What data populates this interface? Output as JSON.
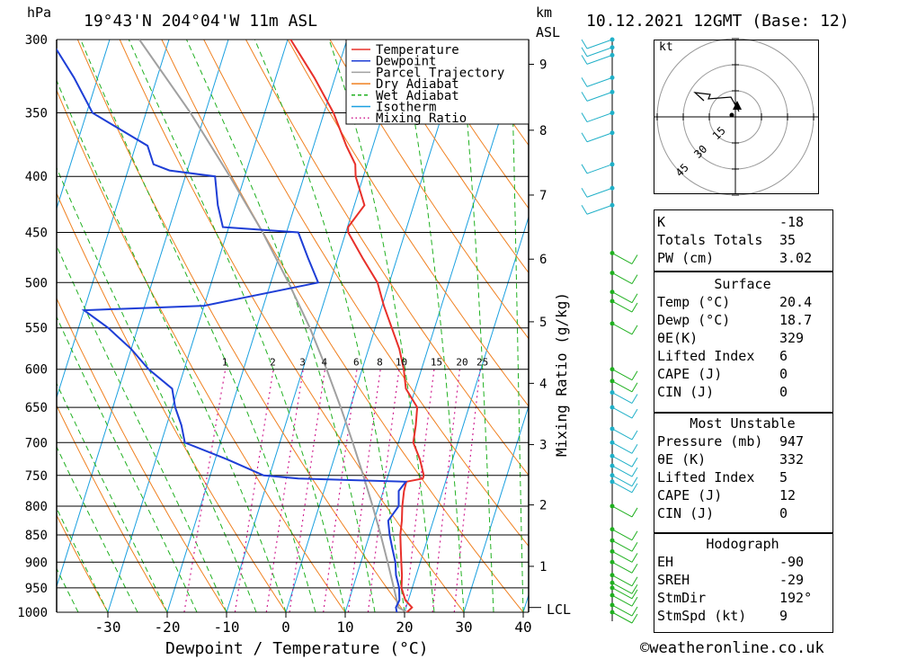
{
  "header": {
    "left_unit": "hPa",
    "location": "19°43'N  204°04'W  11m  ASL",
    "km_label": "km",
    "asl_label": "ASL",
    "datetime": "10.12.2021  12GMT  (Base: 12)"
  },
  "legend": {
    "items": [
      {
        "label": "Temperature",
        "color": "#e8302a",
        "style": "solid"
      },
      {
        "label": "Dewpoint",
        "color": "#1e3ed6",
        "style": "solid"
      },
      {
        "label": "Parcel Trajectory",
        "color": "#a0a0a0",
        "style": "solid"
      },
      {
        "label": "Dry Adiabat",
        "color": "#f08020",
        "style": "solid"
      },
      {
        "label": "Wet Adiabat",
        "color": "#20b020",
        "style": "dashed"
      },
      {
        "label": "Isotherm",
        "color": "#1aa0e0",
        "style": "solid"
      },
      {
        "label": "Mixing Ratio",
        "color": "#d02090",
        "style": "dotted"
      }
    ]
  },
  "chart_data": {
    "type": "line",
    "title": "19°43'N  204°04'W  11m  ASL",
    "xlabel": "Dewpoint / Temperature (°C)",
    "ylabel": "hPa",
    "xlim": [
      -40,
      40
    ],
    "ylim": [
      1000,
      300
    ],
    "y_scale": "log",
    "x_ticks": [
      -30,
      -20,
      -10,
      0,
      10,
      20,
      30,
      40
    ],
    "pressure_ticks": [
      300,
      350,
      400,
      450,
      500,
      550,
      600,
      650,
      700,
      750,
      800,
      850,
      900,
      950,
      1000
    ],
    "km_ticks": [
      {
        "label": "1",
        "p": 908
      },
      {
        "label": "2",
        "p": 798
      },
      {
        "label": "3",
        "p": 703
      },
      {
        "label": "4",
        "p": 618
      },
      {
        "label": "5",
        "p": 543
      },
      {
        "label": "6",
        "p": 476
      },
      {
        "label": "7",
        "p": 416
      },
      {
        "label": "8",
        "p": 363
      },
      {
        "label": "9",
        "p": 316
      }
    ],
    "lcl_label": "LCL",
    "lcl_p": 990,
    "secondary_ylabel": "Mixing Ratio (g/kg)",
    "mixing_ratio_labels": [
      "1",
      "2",
      "3",
      "4",
      "6",
      "8",
      "10",
      "15",
      "20",
      "25"
    ],
    "mixing_ratio_values": [
      1,
      2,
      3,
      4,
      6,
      8,
      10,
      15,
      20,
      25
    ],
    "series": [
      {
        "name": "Temperature",
        "color": "#e8302a",
        "p": [
          1000,
          990,
          975,
          950,
          925,
          900,
          875,
          850,
          825,
          800,
          775,
          760,
          755,
          750,
          725,
          700,
          675,
          650,
          625,
          600,
          575,
          550,
          525,
          500,
          475,
          450,
          445,
          425,
          400,
          390,
          375,
          350,
          325,
          300
        ],
        "t": [
          20.4,
          21.0,
          19.5,
          18.2,
          17.6,
          16.8,
          16.0,
          15.2,
          14.7,
          14.0,
          13.5,
          13.4,
          16.0,
          16.0,
          14.5,
          12.5,
          12.0,
          11.3,
          8.4,
          7.0,
          5.2,
          2.8,
          0.3,
          -2.0,
          -5.8,
          -9.6,
          -9.9,
          -8.3,
          -11.3,
          -12.0,
          -14.5,
          -18.4,
          -23.5,
          -29.5
        ]
      },
      {
        "name": "Dewpoint",
        "color": "#1e3ed6",
        "p": [
          1000,
          990,
          975,
          950,
          925,
          900,
          875,
          850,
          825,
          800,
          775,
          760,
          755,
          750,
          725,
          700,
          675,
          650,
          625,
          600,
          575,
          550,
          530,
          525,
          500,
          475,
          450,
          445,
          425,
          400,
          395,
          390,
          375,
          350,
          325,
          300
        ],
        "t": [
          18.7,
          18.3,
          18.5,
          17.8,
          16.6,
          15.8,
          14.6,
          13.4,
          12.4,
          13.4,
          12.6,
          13.3,
          -5.0,
          -11.0,
          -18.0,
          -26.0,
          -27.5,
          -29.5,
          -31.0,
          -36.0,
          -40.0,
          -45.0,
          -50.0,
          -30.0,
          -12.0,
          -15.0,
          -18.0,
          -31.0,
          -33.0,
          -35.0,
          -43.0,
          -46.0,
          -48.0,
          -59.0,
          -64.0,
          -70.0
        ]
      },
      {
        "name": "Parcel Trajectory",
        "color": "#a0a0a0",
        "p": [
          1000,
          990,
          950,
          900,
          850,
          800,
          750,
          700,
          650,
          600,
          550,
          500,
          450,
          400,
          350,
          300
        ],
        "t": [
          20.4,
          18.7,
          16.9,
          14.5,
          11.9,
          9.0,
          5.8,
          2.3,
          -1.6,
          -6.0,
          -11.0,
          -17.0,
          -24.0,
          -32.5,
          -42.5,
          -55.0
        ]
      }
    ]
  },
  "wind_barbs": {
    "pressures": [
      300,
      305,
      310,
      325,
      335,
      350,
      365,
      390,
      410,
      425,
      470,
      490,
      510,
      520,
      545,
      600,
      615,
      630,
      650,
      680,
      700,
      720,
      735,
      750,
      760,
      800,
      840,
      860,
      880,
      900,
      925,
      940,
      950,
      965,
      985,
      1000
    ]
  },
  "hodograph": {
    "unit_label": "kt",
    "ring_labels": [
      "15",
      "30",
      "45"
    ]
  },
  "stats": {
    "indices": [
      {
        "label": "K",
        "value": "-18"
      },
      {
        "label": "Totals Totals",
        "value": "35"
      },
      {
        "label": "PW (cm)",
        "value": "3.02"
      }
    ],
    "surface_header": "Surface",
    "surface": [
      {
        "label": "Temp (°C)",
        "value": "20.4"
      },
      {
        "label": "Dewp (°C)",
        "value": "18.7"
      },
      {
        "label": "θE(K)",
        "value": "329"
      },
      {
        "label": "Lifted Index",
        "value": "6"
      },
      {
        "label": "CAPE (J)",
        "value": "0"
      },
      {
        "label": "CIN (J)",
        "value": "0"
      }
    ],
    "unstable_header": "Most Unstable",
    "unstable": [
      {
        "label": "Pressure (mb)",
        "value": "947"
      },
      {
        "label": "θE (K)",
        "value": "332"
      },
      {
        "label": "Lifted Index",
        "value": "5"
      },
      {
        "label": "CAPE (J)",
        "value": "12"
      },
      {
        "label": "CIN (J)",
        "value": "0"
      }
    ],
    "hodo_header": "Hodograph",
    "hodo": [
      {
        "label": "EH",
        "value": "-90"
      },
      {
        "label": "SREH",
        "value": "-29"
      },
      {
        "label": "StmDir",
        "value": "192°"
      },
      {
        "label": "StmSpd (kt)",
        "value": "9"
      }
    ]
  },
  "footer": {
    "copyright": "©weatheronline.co.uk"
  }
}
